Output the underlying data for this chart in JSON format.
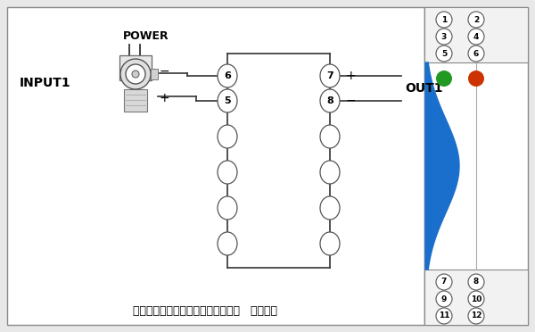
{
  "bg_color": "#e8e8e8",
  "main_bg": "#ffffff",
  "title_text": "无源信号隔离器（输入侧获取能量）   一入一出",
  "input_label": "INPUT1",
  "power_label": "POWER",
  "out_label": "OUT1",
  "minus_label": "−",
  "plus_label": "+",
  "right_panel_pins_top": [
    [
      "1",
      "2"
    ],
    [
      "3",
      "4"
    ],
    [
      "5",
      "6"
    ]
  ],
  "right_panel_pins_bottom": [
    [
      "7",
      "8"
    ],
    [
      "9",
      "10"
    ],
    [
      "11",
      "12"
    ]
  ],
  "green_dot_color": "#229922",
  "red_dot_color": "#cc3300",
  "blue_wave_color": "#1a6fcc",
  "line_color": "#333333",
  "circle_fill": "#ffffff",
  "circle_edge": "#555555"
}
